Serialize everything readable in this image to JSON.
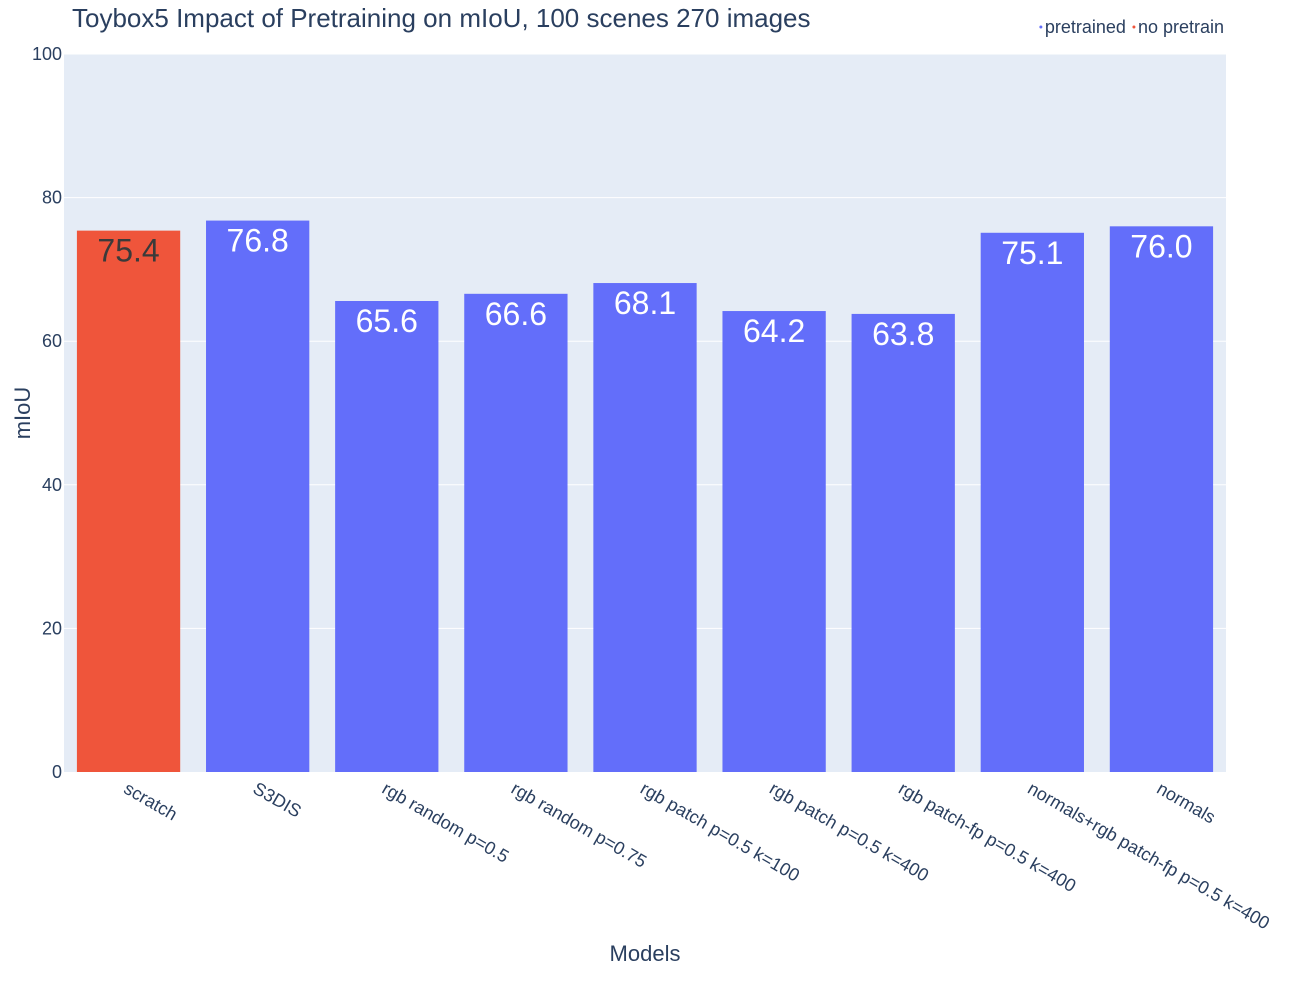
{
  "chart_data": {
    "type": "bar",
    "title": "Toybox5 Impact of Pretraining on mIoU, 100 scenes 270 images",
    "xlabel": "Models",
    "ylabel": "mIoU",
    "ylim": [
      0,
      100
    ],
    "yticks": [
      0,
      20,
      40,
      60,
      80,
      100
    ],
    "grid": true,
    "legend_position": "top-right",
    "categories": [
      "scratch",
      "S3DIS",
      "rgb random p=0.5",
      "rgb random p=0.75",
      "rgb patch p=0.5 k=100",
      "rgb patch p=0.5 k=400",
      "rgb patch-fp p=0.5 k=400",
      "normals+rgb patch-fp p=0.5 k=400",
      "normals"
    ],
    "values": [
      75.4,
      76.8,
      65.6,
      66.6,
      68.1,
      64.2,
      63.8,
      75.1,
      76.0
    ],
    "data_labels": [
      "75.4",
      "76.8",
      "65.6",
      "66.6",
      "68.1",
      "64.2",
      "63.8",
      "75.1",
      "76.0"
    ],
    "groups": [
      "no pretrain",
      "pretrained",
      "pretrained",
      "pretrained",
      "pretrained",
      "pretrained",
      "pretrained",
      "pretrained",
      "pretrained"
    ],
    "legend": [
      {
        "name": "pretrained",
        "color": "#636efa"
      },
      {
        "name": "no pretrain",
        "color": "#ef553b"
      }
    ],
    "colors": {
      "pretrained": "#636efa",
      "no pretrain": "#ef553b",
      "plot_bg": "#e5ecf6",
      "text": "#2a3f5f"
    }
  }
}
